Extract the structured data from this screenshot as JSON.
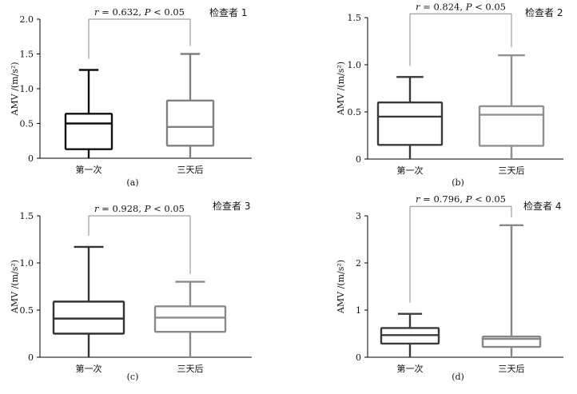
{
  "chart_data": [
    {
      "type": "boxplot",
      "panel_label": "(a)",
      "ylabel": "AMV /(m/s²)",
      "ylim": [
        0,
        2.0
      ],
      "yticks": [
        "0",
        "0.5",
        "1.0",
        "1.5",
        "2.0"
      ],
      "categories": [
        "第一次",
        "三天后"
      ],
      "boxes": [
        {
          "min": 0.0,
          "q1": 0.13,
          "median": 0.5,
          "q3": 0.64,
          "max": 1.27,
          "color": "#111111"
        },
        {
          "min": 0.0,
          "q1": 0.18,
          "median": 0.45,
          "q3": 0.83,
          "max": 1.5,
          "color": "#808080"
        }
      ],
      "bracket_y": 2.0,
      "stat_r": "r",
      "stat_text": " = 0.632, ",
      "stat_p": "P",
      "stat_tail": " < 0.05",
      "examiner": "检查者 1"
    },
    {
      "type": "boxplot",
      "panel_label": "(b)",
      "ylabel": "AMV /(m/s²)",
      "ylim": [
        0,
        1.5
      ],
      "yticks": [
        "0",
        "0.5",
        "1.0",
        "1.5"
      ],
      "categories": [
        "第一次",
        "三天后"
      ],
      "boxes": [
        {
          "min": 0.0,
          "q1": 0.15,
          "median": 0.45,
          "q3": 0.6,
          "max": 0.87,
          "color": "#3a3a3a"
        },
        {
          "min": 0.0,
          "q1": 0.14,
          "median": 0.47,
          "q3": 0.56,
          "max": 1.1,
          "color": "#909090"
        }
      ],
      "bracket_y": 1.54,
      "stat_r": "r",
      "stat_text": " = 0.824, ",
      "stat_p": "P",
      "stat_tail": " < 0.05",
      "examiner": "检查者 2"
    },
    {
      "type": "boxplot",
      "panel_label": "(c)",
      "ylabel": "AMV /(m/s²)",
      "ylim": [
        0,
        1.5
      ],
      "yticks": [
        "0",
        "0.5",
        "1.0",
        "1.5"
      ],
      "categories": [
        "第一次",
        "三天后"
      ],
      "boxes": [
        {
          "min": 0.0,
          "q1": 0.25,
          "median": 0.41,
          "q3": 0.59,
          "max": 1.17,
          "color": "#333333"
        },
        {
          "min": 0.0,
          "q1": 0.27,
          "median": 0.42,
          "q3": 0.54,
          "max": 0.8,
          "color": "#8a8a8a"
        }
      ],
      "bracket_y": 1.5,
      "stat_r": "r",
      "stat_text": " = 0.928, ",
      "stat_p": "P",
      "stat_tail": " < 0.05",
      "examiner": "检查者 3"
    },
    {
      "type": "boxplot",
      "panel_label": "(d)",
      "ylabel": "AMV /(m/s²)",
      "ylim": [
        0,
        3
      ],
      "yticks": [
        "0",
        "1",
        "2",
        "3"
      ],
      "categories": [
        "第一次",
        "三天后"
      ],
      "boxes": [
        {
          "min": 0.0,
          "q1": 0.29,
          "median": 0.47,
          "q3": 0.62,
          "max": 0.92,
          "color": "#3a3a3a"
        },
        {
          "min": 0.0,
          "q1": 0.22,
          "median": 0.39,
          "q3": 0.44,
          "max": 2.8,
          "color": "#888888"
        }
      ],
      "bracket_y": 3.2,
      "stat_r": "r",
      "stat_text": " = 0.796, ",
      "stat_p": "P",
      "stat_tail": " < 0.05",
      "examiner": "检查者 4"
    }
  ]
}
